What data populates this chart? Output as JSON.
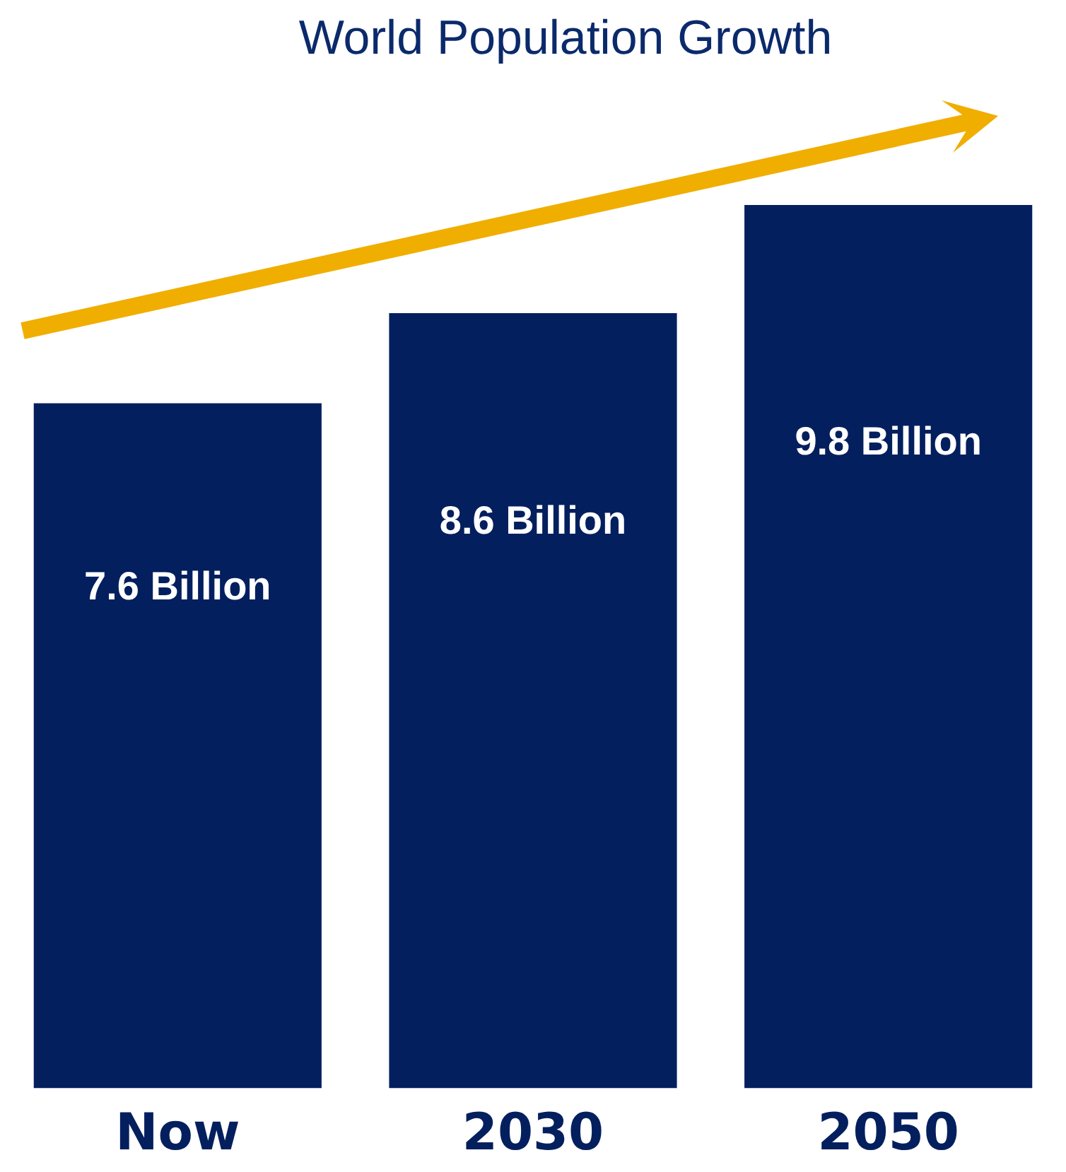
{
  "chart_data": {
    "type": "bar",
    "title": "World Population Growth",
    "categories": [
      "Now",
      "2030",
      "2050"
    ],
    "values": [
      7.6,
      8.6,
      9.8
    ],
    "value_labels": [
      "7.6 Billion",
      "8.6 Billion",
      "9.8 Billion"
    ],
    "color": "#031f5e",
    "grid": false,
    "legend": false
  }
}
